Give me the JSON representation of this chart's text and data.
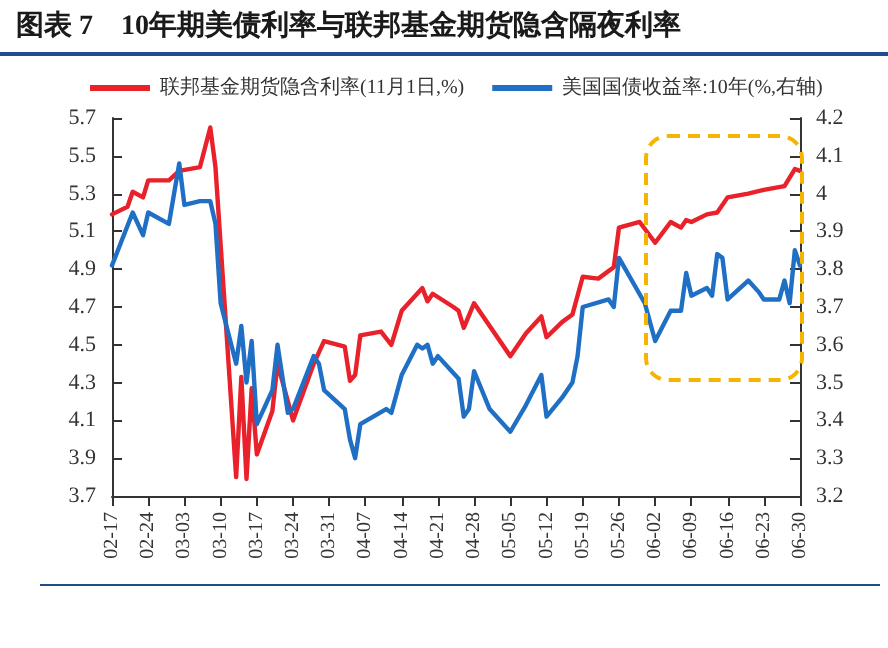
{
  "chart_data": {
    "type": "line",
    "title": "图表 7　10年期美债利率与联邦基金期货隐含隔夜利率",
    "x": [
      "--02-17",
      "--02-20",
      "--02-21",
      "--02-23",
      "--02-24",
      "--02-28",
      "--03-02",
      "--03-06",
      "--03-08",
      "--03-09",
      "--03-13",
      "--03-14",
      "--03-15",
      "--03-16",
      "--03-17",
      "--03-20",
      "--03-21",
      "--03-24",
      "--03-28",
      "--03-30",
      "--04-03",
      "--04-04",
      "--04-05",
      "--04-06",
      "--04-10",
      "--04-12",
      "--04-14",
      "--04-18",
      "--04-19",
      "--04-20",
      "--04-24",
      "--04-25",
      "--04-26",
      "--04-28",
      "--05-05",
      "--05-08",
      "--05-11",
      "--05-12",
      "--05-15",
      "--05-17",
      "--05-19",
      "--05-22",
      "--05-25",
      "--05-26",
      "--05-30",
      "--06-02",
      "--06-05",
      "--06-07",
      "--06-08",
      "--06-09",
      "--06-12",
      "--06-14",
      "--06-16",
      "--06-20",
      "--06-23",
      "--06-27",
      "--06-29",
      "--06-30"
    ],
    "series": [
      {
        "name": "联邦基金期货隐含利率(11月1日,%)",
        "color": "#e8212b",
        "values": [
          5.19,
          5.23,
          5.31,
          5.28,
          5.37,
          5.37,
          5.42,
          5.44,
          5.65,
          5.44,
          3.8,
          4.33,
          3.79,
          4.27,
          3.92,
          4.15,
          4.4,
          4.1,
          4.4,
          4.52,
          4.49,
          4.31,
          4.34,
          4.55,
          4.57,
          4.5,
          4.68,
          4.8,
          4.73,
          4.77,
          4.7,
          4.68,
          4.59,
          4.72,
          4.44,
          4.56,
          4.65,
          4.54,
          4.62,
          4.66,
          4.86,
          4.85,
          4.91,
          5.12,
          5.15,
          5.04,
          5.15,
          5.12,
          5.16,
          5.15,
          5.19,
          5.2,
          5.28,
          5.3,
          5.32,
          5.34,
          5.43,
          5.42
        ]
      },
      {
        "name": "美国国债收益率:10年(%,右轴)",
        "color": "#1f6fc5",
        "axis": "y2",
        "x": [
          "--02-17",
          "--02-21",
          "--02-23",
          "--02-24",
          "--02-28",
          "--03-02",
          "--03-03",
          "--03-06",
          "--03-08",
          "--03-09",
          "--03-10",
          "--03-13",
          "--03-14",
          "--03-15",
          "--03-16",
          "--03-17",
          "--03-20",
          "--03-21",
          "--03-23",
          "--03-24",
          "--03-28",
          "--03-29",
          "--03-30",
          "--04-03",
          "--04-04",
          "--04-05",
          "--04-06",
          "--04-11",
          "--04-12",
          "--04-14",
          "--04-17",
          "--04-18",
          "--04-19",
          "--04-20",
          "--04-21",
          "--04-25",
          "--04-26",
          "--04-27",
          "--04-28",
          "--05-01",
          "--05-05",
          "--05-08",
          "--05-11",
          "--05-12",
          "--05-15",
          "--05-17",
          "--05-18",
          "--05-19",
          "--05-24",
          "--05-25",
          "--05-26",
          "--05-31",
          "--06-02",
          "--06-05",
          "--06-07",
          "--06-08",
          "--06-09",
          "--06-12",
          "--06-13",
          "--06-14",
          "--06-15",
          "--06-16",
          "--06-20",
          "--06-22",
          "--06-23",
          "--06-26",
          "--06-27",
          "--06-28",
          "--06-29",
          "--06-30"
        ],
        "values": [
          3.81,
          3.95,
          3.89,
          3.95,
          3.92,
          4.08,
          3.97,
          3.98,
          3.98,
          3.92,
          3.71,
          3.55,
          3.65,
          3.5,
          3.61,
          3.39,
          3.48,
          3.6,
          3.42,
          3.43,
          3.57,
          3.55,
          3.48,
          3.43,
          3.35,
          3.3,
          3.39,
          3.43,
          3.42,
          3.52,
          3.6,
          3.59,
          3.6,
          3.55,
          3.57,
          3.51,
          3.41,
          3.43,
          3.53,
          3.43,
          3.37,
          3.44,
          3.52,
          3.41,
          3.46,
          3.5,
          3.57,
          3.7,
          3.72,
          3.7,
          3.83,
          3.71,
          3.61,
          3.69,
          3.69,
          3.79,
          3.73,
          3.75,
          3.73,
          3.84,
          3.83,
          3.72,
          3.77,
          3.74,
          3.72,
          3.72,
          3.77,
          3.71,
          3.85,
          3.81
        ]
      }
    ],
    "xlim": [
      "--02-17",
      "--06-30"
    ],
    "xticks": [
      {
        "value": "--02-17",
        "label": "02-17"
      },
      {
        "value": "--02-24",
        "label": "02-24"
      },
      {
        "value": "--03-03",
        "label": "03-03"
      },
      {
        "value": "--03-10",
        "label": "03-10"
      },
      {
        "value": "--03-17",
        "label": "03-17"
      },
      {
        "value": "--03-24",
        "label": "03-24"
      },
      {
        "value": "--03-31",
        "label": "03-31"
      },
      {
        "value": "--04-07",
        "label": "04-07"
      },
      {
        "value": "--04-14",
        "label": "04-14"
      },
      {
        "value": "--04-21",
        "label": "04-21"
      },
      {
        "value": "--04-28",
        "label": "04-28"
      },
      {
        "value": "--05-05",
        "label": "05-05"
      },
      {
        "value": "--05-12",
        "label": "05-12"
      },
      {
        "value": "--05-19",
        "label": "05-19"
      },
      {
        "value": "--05-26",
        "label": "05-26"
      },
      {
        "value": "--06-02",
        "label": "06-02"
      },
      {
        "value": "--06-09",
        "label": "06-09"
      },
      {
        "value": "--06-16",
        "label": "06-16"
      },
      {
        "value": "--06-23",
        "label": "06-23"
      },
      {
        "value": "--06-30",
        "label": "06-30"
      }
    ],
    "ylim": [
      3.7,
      5.7
    ],
    "yticks": [
      3.7,
      3.9,
      4.1,
      4.3,
      4.5,
      4.7,
      4.9,
      5.1,
      5.3,
      5.5,
      5.7
    ],
    "y2lim": [
      3.2,
      4.2
    ],
    "y2ticks": [
      3.2,
      3.3,
      3.4,
      3.5,
      3.6,
      3.7,
      3.8,
      3.9,
      4,
      4.1,
      4.2
    ],
    "legend": "top",
    "grid": false,
    "marker": "none",
    "line_style": "solid"
  }
}
